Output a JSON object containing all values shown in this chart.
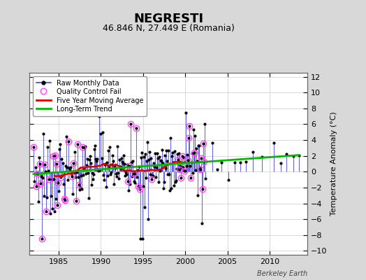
{
  "title": "NEGRESTI",
  "subtitle": "46.846 N, 27.449 E (Romania)",
  "ylabel": "Temperature Anomaly (°C)",
  "credit": "Berkeley Earth",
  "xlim": [
    1981.5,
    2014.5
  ],
  "ylim": [
    -10.5,
    12.5
  ],
  "yticks": [
    -10,
    -8,
    -6,
    -4,
    -2,
    0,
    2,
    4,
    6,
    8,
    10,
    12
  ],
  "xticks": [
    1985,
    1990,
    1995,
    2000,
    2005,
    2010
  ],
  "bg_color": "#d8d8d8",
  "plot_bg_color": "#ffffff",
  "raw_line_color": "#4444dd",
  "raw_marker_color": "#000000",
  "qc_color": "#ff44ff",
  "moving_avg_color": "#dd0000",
  "trend_color": "#00bb00",
  "legend_labels": [
    "Raw Monthly Data",
    "Quality Control Fail",
    "Five Year Moving Average",
    "Long-Term Trend"
  ]
}
